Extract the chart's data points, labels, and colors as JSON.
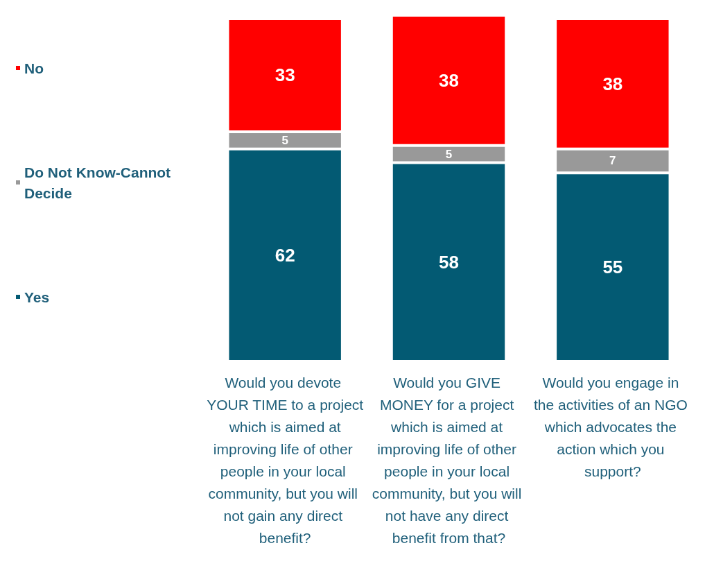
{
  "chart_data": {
    "type": "bar",
    "stacked": true,
    "data_labels": true,
    "legend": "left",
    "grid": false,
    "categories": [
      "Would you devote YOUR TIME to a project which is aimed at improving life of other people in your local community, but you will not gain any direct benefit?",
      "Would you GIVE MONEY for a project which is aimed at improving life of other people in your local community, but you will not have any direct benefit from that?",
      "Would you engage in the activities of an NGO which advocates the action which you support?"
    ],
    "series": [
      {
        "name": "Yes",
        "color": "#035a73",
        "values": [
          62,
          58,
          55
        ]
      },
      {
        "name": "Do Not Know-Cannot Decide",
        "color": "#999999",
        "values": [
          5,
          5,
          7
        ]
      },
      {
        "name": "No",
        "color": "#ff0000",
        "values": [
          33,
          38,
          38
        ]
      }
    ]
  }
}
